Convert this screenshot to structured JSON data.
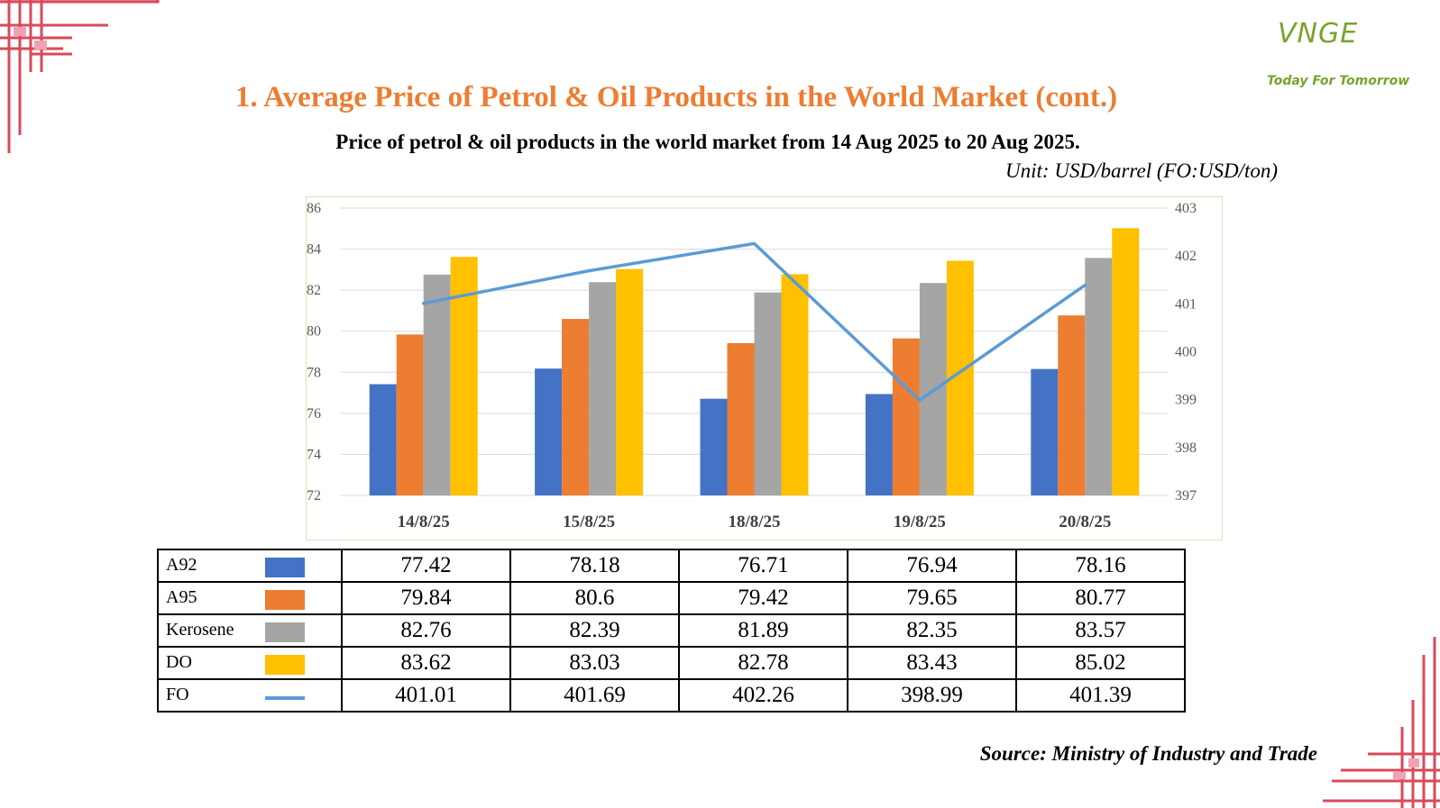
{
  "logo": {
    "mark": "VNGE",
    "tagline": "Today For Tomorrow"
  },
  "title": "1. Average Price of Petrol & Oil Products in the World Market (cont.)",
  "subtitle": "Price of petrol & oil products in the world market from 14 Aug 2025 to 20 Aug 2025.",
  "unit": "Unit: USD/barrel (FO:USD/ton)",
  "source": "Source: Ministry of Industry and Trade",
  "chart_data": {
    "type": "bar",
    "categories": [
      "14/8/25",
      "15/8/25",
      "18/8/25",
      "19/8/25",
      "20/8/25"
    ],
    "series": [
      {
        "name": "A92",
        "type": "bar",
        "axis": "left",
        "color": "#4472c4",
        "values": [
          77.42,
          78.18,
          76.71,
          76.94,
          78.16
        ]
      },
      {
        "name": "A95",
        "type": "bar",
        "axis": "left",
        "color": "#ed7d31",
        "values": [
          79.84,
          80.6,
          79.42,
          79.65,
          80.77
        ]
      },
      {
        "name": "Kerosene",
        "type": "bar",
        "axis": "left",
        "color": "#a5a5a5",
        "values": [
          82.76,
          82.39,
          81.89,
          82.35,
          83.57
        ]
      },
      {
        "name": "DO",
        "type": "bar",
        "axis": "left",
        "color": "#ffc000",
        "values": [
          83.62,
          83.03,
          82.78,
          83.43,
          85.02
        ]
      },
      {
        "name": "FO",
        "type": "line",
        "axis": "right",
        "color": "#5b9bd5",
        "values": [
          401.01,
          401.69,
          402.26,
          398.99,
          401.39
        ]
      }
    ],
    "ylim_left": [
      72,
      86
    ],
    "yticks_left": [
      "72",
      "74",
      "76",
      "78",
      "80",
      "82",
      "84",
      "86"
    ],
    "ylim_right": [
      397,
      403
    ],
    "yticks_right": [
      "397",
      "398",
      "399",
      "400",
      "401",
      "402",
      "403"
    ],
    "grid": true,
    "legend": "data table below chart"
  },
  "table": {
    "rows": [
      {
        "label": "A92",
        "color": "#4472c4",
        "marker": "box",
        "values": [
          "77.42",
          "78.18",
          "76.71",
          "76.94",
          "78.16"
        ]
      },
      {
        "label": "A95",
        "color": "#ed7d31",
        "marker": "box",
        "values": [
          "79.84",
          "80.6",
          "79.42",
          "79.65",
          "80.77"
        ]
      },
      {
        "label": "Kerosene",
        "color": "#a5a5a5",
        "marker": "box",
        "values": [
          "82.76",
          "82.39",
          "81.89",
          "82.35",
          "83.57"
        ]
      },
      {
        "label": "DO",
        "color": "#ffc000",
        "marker": "box",
        "values": [
          "83.62",
          "83.03",
          "82.78",
          "83.43",
          "85.02"
        ]
      },
      {
        "label": "FO",
        "color": "#5b9bd5",
        "marker": "line",
        "values": [
          "401.01",
          "401.69",
          "402.26",
          "398.99",
          "401.39"
        ]
      }
    ]
  }
}
